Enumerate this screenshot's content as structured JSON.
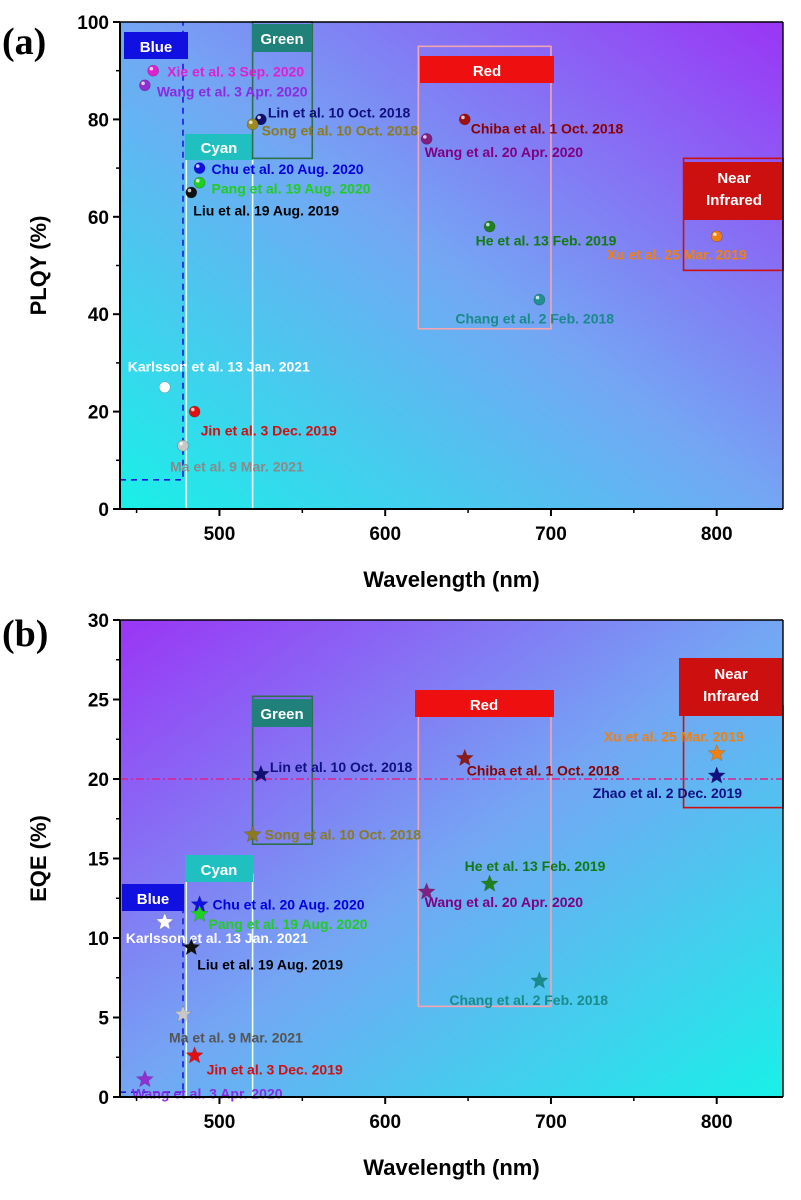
{
  "chart_data": [
    {
      "type": "scatter",
      "panel_label": "(a)",
      "xlabel": "Wavelength (nm)",
      "ylabel": "PLQY (%)",
      "xlim": [
        440,
        840
      ],
      "ylim": [
        0,
        100
      ],
      "xticks": [
        500,
        600,
        700,
        800
      ],
      "yticks": [
        0,
        20,
        40,
        60,
        80,
        100
      ],
      "marker": "sphere",
      "points": [
        {
          "x": 460,
          "y": 90,
          "label": "Xie et al. 3 Sep. 2020",
          "color": "#e020d0",
          "text_color": "#e020d0"
        },
        {
          "x": 455,
          "y": 87,
          "label": "Wang et al. 3 Apr. 2020",
          "color": "#9030d0",
          "text_color": "#8a2be2"
        },
        {
          "x": 525,
          "y": 80,
          "label": "Lin et al. 10 Oct. 2018",
          "color": "#101070",
          "text_color": "#101080"
        },
        {
          "x": 520,
          "y": 79,
          "label": "Song et al. 10 Oct. 2018",
          "color": "#a08a20",
          "text_color": "#8a7a20"
        },
        {
          "x": 648,
          "y": 80,
          "label": "Chiba et al. 1 Oct. 2018",
          "color": "#a01010",
          "text_color": "#8b0000"
        },
        {
          "x": 625,
          "y": 76,
          "label": "Wang et al. 20 Apr. 2020",
          "color": "#802080",
          "text_color": "#800080"
        },
        {
          "x": 488,
          "y": 70,
          "label": "Chu et al. 20 Aug. 2020",
          "color": "#1010e0",
          "text_color": "#0000dd"
        },
        {
          "x": 488,
          "y": 67,
          "label": "Pang et al. 19 Aug. 2020",
          "color": "#20d020",
          "text_color": "#22cc22"
        },
        {
          "x": 483,
          "y": 65,
          "label": "Liu et al. 19 Aug. 2019",
          "color": "#101010",
          "text_color": "#000000"
        },
        {
          "x": 663,
          "y": 58,
          "label": "He et al. 13 Feb. 2019",
          "color": "#208020",
          "text_color": "#137a13"
        },
        {
          "x": 800,
          "y": 56,
          "label": "Xu et al. 25 Mar. 2019",
          "color": "#f08010",
          "text_color": "#f08010"
        },
        {
          "x": 693,
          "y": 43,
          "label": "Chang et al. 2 Feb. 2018",
          "color": "#209090",
          "text_color": "#1a8a8a"
        },
        {
          "x": 467,
          "y": 25,
          "label": "Karlsson et al. 13 Jan. 2021",
          "color": "#ffffff",
          "text_color": "#ffffff"
        },
        {
          "x": 485,
          "y": 20,
          "label": "Jin et al. 3 Dec. 2019",
          "color": "#e01010",
          "text_color": "#d01010"
        },
        {
          "x": 478,
          "y": 13,
          "label": "Ma et al. 9 Mar. 2021",
          "color": "#c8c8c8",
          "text_color": "#8a8a8a"
        }
      ],
      "regions": [
        {
          "label": "Blue",
          "x0": 440,
          "x1": 478,
          "y0": 6,
          "y1": 100,
          "color": "#1010e0"
        },
        {
          "label": "Cyan",
          "x0": 480,
          "x1": 520,
          "y0": 0,
          "y1": 72,
          "color": "#20c0c0"
        },
        {
          "label": "Green",
          "x0": 520,
          "x1": 556,
          "y0": 72,
          "y1": 100,
          "color": "#20807a"
        },
        {
          "label": "Red",
          "x0": 620,
          "x1": 700,
          "y0": 37,
          "y1": 95,
          "color": "#ee1010"
        },
        {
          "label": "Near\nInfrared",
          "x0": 780,
          "x1": 840,
          "y0": 49,
          "y1": 72,
          "color": "#cc1010"
        }
      ]
    },
    {
      "type": "scatter",
      "panel_label": "(b)",
      "xlabel": "Wavelength (nm)",
      "ylabel": "EQE (%)",
      "xlim": [
        440,
        840
      ],
      "ylim": [
        0,
        30
      ],
      "xticks": [
        500,
        600,
        700,
        800
      ],
      "yticks": [
        0,
        5,
        10,
        15,
        20,
        25,
        30
      ],
      "marker": "star",
      "reference_line_y": 20,
      "points": [
        {
          "x": 525,
          "y": 20.3,
          "label": "Lin et al. 10 Oct. 2018",
          "color": "#101070",
          "text_color": "#101080"
        },
        {
          "x": 648,
          "y": 21.3,
          "label": "Chiba et al. 1 Oct. 2018",
          "color": "#8b1a1a",
          "text_color": "#8b0000"
        },
        {
          "x": 800,
          "y": 21.6,
          "label": "Xu et al. 25 Mar. 2019",
          "color": "#f08010",
          "text_color": "#f08010"
        },
        {
          "x": 800,
          "y": 20.2,
          "label": "Zhao et al. 2 Dec. 2019",
          "color": "#101080",
          "text_color": "#101080"
        },
        {
          "x": 520,
          "y": 16.5,
          "label": "Song et al. 10 Oct. 2018",
          "color": "#8a7a20",
          "text_color": "#8a7a20"
        },
        {
          "x": 663,
          "y": 13.4,
          "label": "He et al. 13 Feb. 2019",
          "color": "#208020",
          "text_color": "#137a13"
        },
        {
          "x": 625,
          "y": 12.9,
          "label": "Wang et al. 20 Apr. 2020",
          "color": "#802080",
          "text_color": "#800080"
        },
        {
          "x": 488,
          "y": 12.1,
          "label": "Chu et al. 20 Aug. 2020",
          "color": "#1010e0",
          "text_color": "#0000dd"
        },
        {
          "x": 488,
          "y": 11.5,
          "label": "Pang et al. 19 Aug. 2020",
          "color": "#20d020",
          "text_color": "#22cc22"
        },
        {
          "x": 467,
          "y": 11.0,
          "label": "Karlsson et al. 13 Jan. 2021",
          "color": "#ffffff",
          "text_color": "#ffffff"
        },
        {
          "x": 483,
          "y": 9.4,
          "label": "Liu et al. 19 Aug. 2019",
          "color": "#101010",
          "text_color": "#000000"
        },
        {
          "x": 693,
          "y": 7.3,
          "label": "Chang et al. 2 Feb. 2018",
          "color": "#1a8a8a",
          "text_color": "#1a8a8a"
        },
        {
          "x": 478,
          "y": 5.2,
          "label": "Ma et al. 9 Mar. 2021",
          "color": "#c8c8c8",
          "text_color": "#555555"
        },
        {
          "x": 485,
          "y": 2.6,
          "label": "Jin et al. 3 Dec. 2019",
          "color": "#e01010",
          "text_color": "#d01010"
        },
        {
          "x": 455,
          "y": 1.1,
          "label": "Wang et al. 3 Apr. 2020",
          "color": "#9030d0",
          "text_color": "#8a2be2"
        }
      ],
      "regions": [
        {
          "label": "Blue",
          "x0": 440,
          "x1": 478,
          "y0": 0.3,
          "y1": 12.2,
          "color": "#1010e0"
        },
        {
          "label": "Cyan",
          "x0": 480,
          "x1": 520,
          "y0": 0,
          "y1": 14,
          "color": "#20c0c0"
        },
        {
          "label": "Green",
          "x0": 520,
          "x1": 556,
          "y0": 15.9,
          "y1": 25.2,
          "color": "#20807a"
        },
        {
          "label": "Red",
          "x0": 620,
          "x1": 700,
          "y0": 5.7,
          "y1": 24.3,
          "color": "#ee1010"
        },
        {
          "label": "Near\nInfrared",
          "x0": 780,
          "x1": 840,
          "y0": 18.2,
          "y1": 24.6,
          "color": "#cc1010"
        }
      ]
    }
  ]
}
